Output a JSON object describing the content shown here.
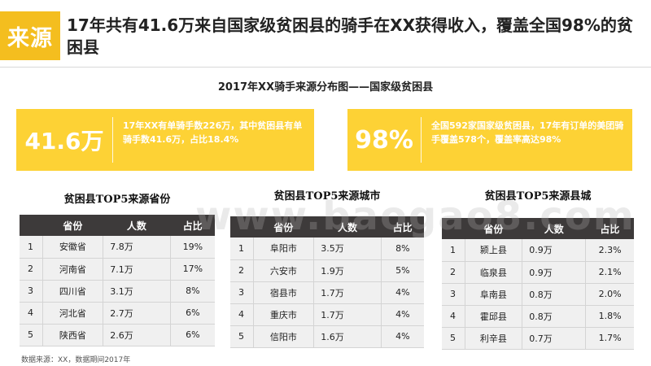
{
  "header": {
    "tag": "来源",
    "title": "17年共有41.6万来自国家级贫困县的骑手在XX获得收入，覆盖全国98%的贫困县"
  },
  "subtitle": "2017年XX骑手来源分布图——国家级贫困县",
  "cards": [
    {
      "big": "41.6万",
      "desc": "17年XX有单骑手数226万，其中贫困县有单骑手数41.6万，占比18.4%"
    },
    {
      "big": "98%",
      "desc": "全国592家国家级贫困县，17年有订单的美团骑手覆盖578个，覆盖率高达98%"
    }
  ],
  "tables": [
    {
      "title": "贫困县TOP5来源省份",
      "headers": [
        "省份",
        "人数",
        "占比"
      ],
      "rows": [
        [
          "1",
          "安徽省",
          "7.8万",
          "19%"
        ],
        [
          "2",
          "河南省",
          "7.1万",
          "17%"
        ],
        [
          "3",
          "四川省",
          "3.1万",
          "8%"
        ],
        [
          "4",
          "河北省",
          "2.7万",
          "6%"
        ],
        [
          "5",
          "陕西省",
          "2.6万",
          "6%"
        ]
      ]
    },
    {
      "title": "贫困县TOP5来源城市",
      "headers": [
        "省份",
        "人数",
        "占比"
      ],
      "rows": [
        [
          "1",
          "阜阳市",
          "3.5万",
          "8%"
        ],
        [
          "2",
          "六安市",
          "1.9万",
          "5%"
        ],
        [
          "3",
          "宿县市",
          "1.7万",
          "4%"
        ],
        [
          "4",
          "重庆市",
          "1.7万",
          "4%"
        ],
        [
          "5",
          "信阳市",
          "1.6万",
          "4%"
        ]
      ]
    },
    {
      "title": "贫困县TOP5来源县城",
      "headers": [
        "省份",
        "人数",
        "占比"
      ],
      "rows": [
        [
          "1",
          "颍上县",
          "0.9万",
          "2.3%"
        ],
        [
          "2",
          "临泉县",
          "0.9万",
          "2.1%"
        ],
        [
          "3",
          "阜南县",
          "0.8万",
          "2.0%"
        ],
        [
          "4",
          "霍邱县",
          "0.8万",
          "1.8%"
        ],
        [
          "5",
          "利辛县",
          "0.7万",
          "1.7%"
        ]
      ]
    }
  ],
  "source": "数据来源：XX，数据期间2017年",
  "watermark": "www.baogao8.com",
  "colors": {
    "accent": "#F4BE1F",
    "card": "#FDD235",
    "table_header": "#3D3A3A"
  }
}
